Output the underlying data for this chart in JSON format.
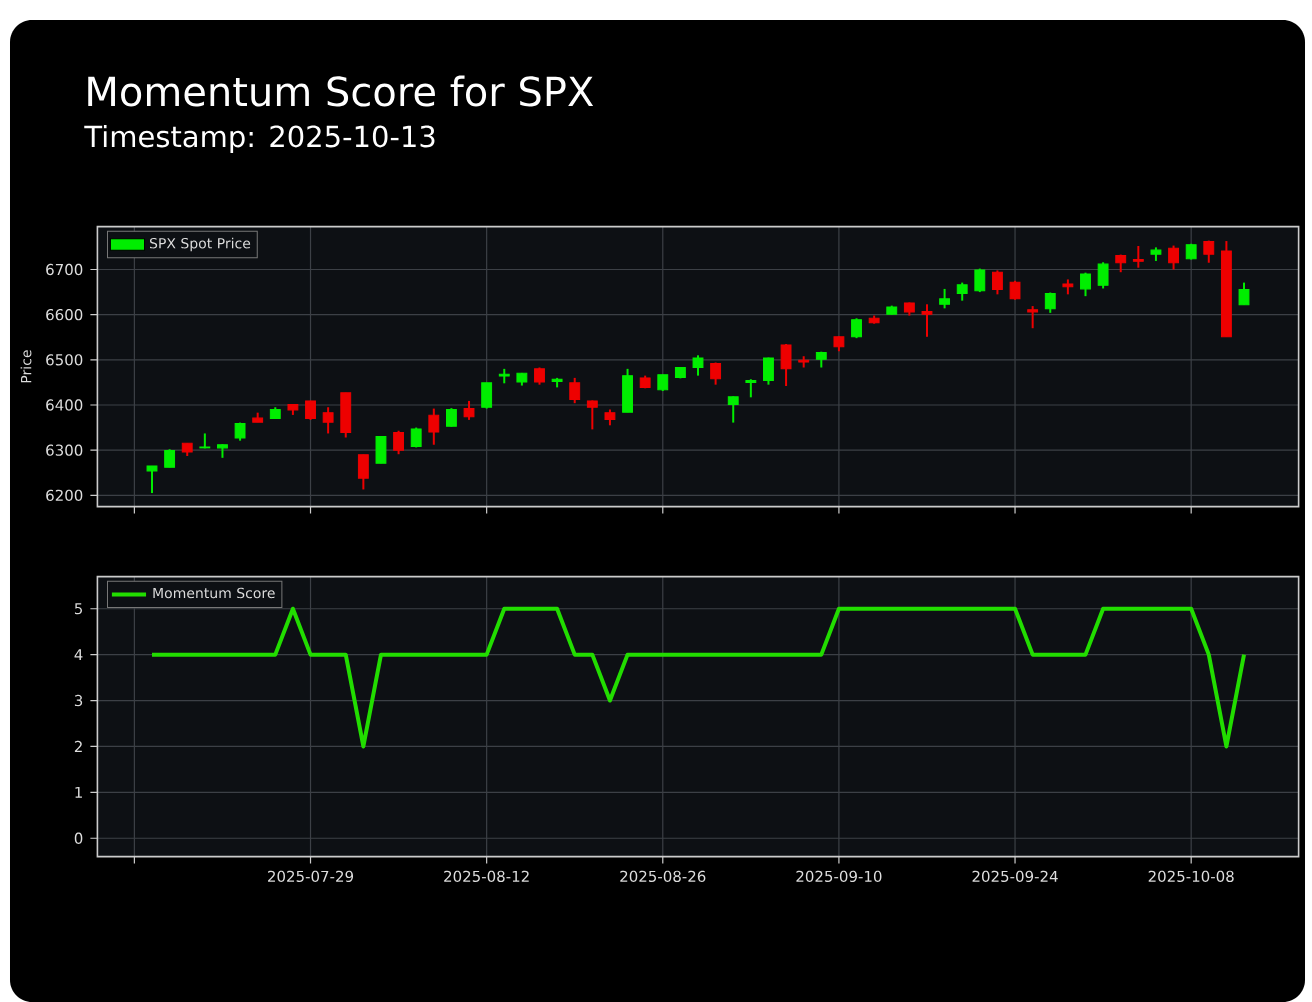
{
  "chart_data": [
    {
      "type": "candlestick",
      "title": "Momentum Score for SPX",
      "subtitle": "Timestamp: 2025-10-13",
      "ylabel": "Price",
      "categories": [
        null,
        null,
        null,
        null,
        null,
        null,
        null,
        null,
        null,
        "2025-07-29",
        null,
        null,
        null,
        null,
        null,
        null,
        null,
        null,
        null,
        "2025-08-12",
        null,
        null,
        null,
        null,
        null,
        null,
        null,
        null,
        null,
        "2025-08-26",
        null,
        null,
        null,
        null,
        null,
        null,
        null,
        null,
        null,
        "2025-09-10",
        null,
        null,
        null,
        null,
        null,
        null,
        null,
        null,
        null,
        "2025-09-24",
        null,
        null,
        null,
        null,
        null,
        null,
        null,
        null,
        null,
        "2025-10-08",
        null,
        null,
        null
      ],
      "series": [
        {
          "name": "SPX Spot Price",
          "color": "#00ee00",
          "ohlc": [
            [
              6254,
              6265,
              6205,
              6265
            ],
            [
              6262,
              6302,
              6262,
              6299
            ],
            [
              6315,
              6315,
              6287,
              6296
            ],
            [
              6305,
              6337,
              6304,
              6307
            ],
            [
              6305,
              6313,
              6283,
              6312
            ],
            [
              6327,
              6361,
              6321,
              6359
            ],
            [
              6371,
              6383,
              6362,
              6362
            ],
            [
              6370,
              6395,
              6369,
              6390
            ],
            [
              6401,
              6402,
              6378,
              6389
            ],
            [
              6409,
              6409,
              6367,
              6370
            ],
            [
              6383,
              6395,
              6337,
              6362
            ],
            [
              6427,
              6427,
              6328,
              6339
            ],
            [
              6290,
              6290,
              6213,
              6238
            ],
            [
              6271,
              6330,
              6271,
              6330
            ],
            [
              6339,
              6343,
              6291,
              6300
            ],
            [
              6308,
              6350,
              6306,
              6347
            ],
            [
              6377,
              6392,
              6312,
              6340
            ],
            [
              6353,
              6393,
              6352,
              6390
            ],
            [
              6392,
              6409,
              6367,
              6374
            ],
            [
              6395,
              6449,
              6392,
              6449
            ],
            [
              6464,
              6480,
              6448,
              6468
            ],
            [
              6451,
              6471,
              6443,
              6470
            ],
            [
              6480,
              6483,
              6445,
              6451
            ],
            [
              6452,
              6460,
              6439,
              6457
            ],
            [
              6449,
              6460,
              6404,
              6412
            ],
            [
              6409,
              6410,
              6346,
              6395
            ],
            [
              6383,
              6390,
              6355,
              6368
            ],
            [
              6384,
              6480,
              6384,
              6465
            ],
            [
              6460,
              6465,
              6437,
              6439
            ],
            [
              6434,
              6467,
              6431,
              6467
            ],
            [
              6461,
              6484,
              6459,
              6483
            ],
            [
              6483,
              6510,
              6465,
              6504
            ],
            [
              6492,
              6494,
              6445,
              6458
            ],
            [
              6401,
              6419,
              6361,
              6418
            ],
            [
              6450,
              6457,
              6417,
              6454
            ],
            [
              6454,
              6505,
              6445,
              6504
            ],
            [
              6533,
              6535,
              6442,
              6480
            ],
            [
              6499,
              6508,
              6483,
              6495
            ],
            [
              6501,
              6518,
              6483,
              6516
            ],
            [
              6551,
              6552,
              6519,
              6529
            ],
            [
              6551,
              6592,
              6548,
              6589
            ],
            [
              6592,
              6598,
              6580,
              6582
            ],
            [
              6601,
              6620,
              6600,
              6617
            ],
            [
              6626,
              6627,
              6598,
              6606
            ],
            [
              6607,
              6623,
              6551,
              6601
            ],
            [
              6623,
              6657,
              6614,
              6635
            ],
            [
              6647,
              6671,
              6631,
              6666
            ],
            [
              6653,
              6702,
              6650,
              6699
            ],
            [
              6694,
              6698,
              6645,
              6656
            ],
            [
              6672,
              6675,
              6633,
              6635
            ],
            [
              6611,
              6619,
              6570,
              6606
            ],
            [
              6613,
              6649,
              6604,
              6647
            ],
            [
              6668,
              6678,
              6645,
              6662
            ],
            [
              6657,
              6693,
              6641,
              6690
            ],
            [
              6665,
              6716,
              6658,
              6712
            ],
            [
              6731,
              6733,
              6694,
              6715
            ],
            [
              6722,
              6752,
              6704,
              6718
            ],
            [
              6734,
              6749,
              6719,
              6743
            ],
            [
              6747,
              6753,
              6700,
              6715
            ],
            [
              6724,
              6757,
              6722,
              6755
            ],
            [
              6762,
              6764,
              6715,
              6734
            ],
            [
              6741,
              6763,
              6551,
              6551
            ],
            [
              6622,
              6671,
              6622,
              6656
            ]
          ],
          "colors": [
            "#00ee00",
            "#00ee00",
            "#ee0000",
            "#00ee00",
            "#00ee00",
            "#00ee00",
            "#ee0000",
            "#00ee00",
            "#ee0000",
            "#ee0000",
            "#ee0000",
            "#ee0000",
            "#ee0000",
            "#00ee00",
            "#ee0000",
            "#00ee00",
            "#ee0000",
            "#00ee00",
            "#ee0000",
            "#00ee00",
            "#00ee00",
            "#00ee00",
            "#ee0000",
            "#00ee00",
            "#ee0000",
            "#ee0000",
            "#ee0000",
            "#00ee00",
            "#ee0000",
            "#00ee00",
            "#00ee00",
            "#00ee00",
            "#ee0000",
            "#00ee00",
            "#00ee00",
            "#00ee00",
            "#ee0000",
            "#ee0000",
            "#00ee00",
            "#ee0000",
            "#00ee00",
            "#ee0000",
            "#00ee00",
            "#ee0000",
            "#ee0000",
            "#00ee00",
            "#00ee00",
            "#00ee00",
            "#ee0000",
            "#ee0000",
            "#ee0000",
            "#00ee00",
            "#ee0000",
            "#00ee00",
            "#00ee00",
            "#ee0000",
            "#ee0000",
            "#00ee00",
            "#ee0000",
            "#00ee00",
            "#ee0000",
            "#ee0000",
            "#00ee00"
          ]
        }
      ],
      "ylim": [
        6175,
        6795
      ],
      "yticks": [
        6200,
        6300,
        6400,
        6500,
        6600,
        6700
      ],
      "grid": true,
      "legend": "top left",
      "tick_labels": "y"
    },
    {
      "type": "line",
      "categories": [
        null,
        null,
        null,
        null,
        null,
        null,
        null,
        null,
        null,
        "2025-07-29",
        null,
        null,
        null,
        null,
        null,
        null,
        null,
        null,
        null,
        "2025-08-12",
        null,
        null,
        null,
        null,
        null,
        null,
        null,
        null,
        null,
        "2025-08-26",
        null,
        null,
        null,
        null,
        null,
        null,
        null,
        null,
        null,
        "2025-09-10",
        null,
        null,
        null,
        null,
        null,
        null,
        null,
        null,
        null,
        "2025-09-24",
        null,
        null,
        null,
        null,
        null,
        null,
        null,
        null,
        null,
        "2025-10-08",
        null,
        null,
        null
      ],
      "series": [
        {
          "name": "Momentum Score",
          "color": "#22dd00",
          "values": [
            4,
            4,
            4,
            4,
            4,
            4,
            4,
            4,
            5,
            4,
            4,
            4,
            2,
            4,
            4,
            4,
            4,
            4,
            4,
            4,
            5,
            5,
            5,
            5,
            4,
            4,
            3,
            4,
            4,
            4,
            4,
            4,
            4,
            4,
            4,
            4,
            4,
            4,
            4,
            5,
            5,
            5,
            5,
            5,
            5,
            5,
            5,
            5,
            5,
            5,
            4,
            4,
            4,
            4,
            5,
            5,
            5,
            5,
            5,
            5,
            4,
            2,
            4
          ]
        }
      ],
      "ylim": [
        -0.4,
        5.7
      ],
      "yticks": [
        0,
        1,
        2,
        3,
        4,
        5
      ],
      "grid": true,
      "legend": "top left"
    }
  ]
}
